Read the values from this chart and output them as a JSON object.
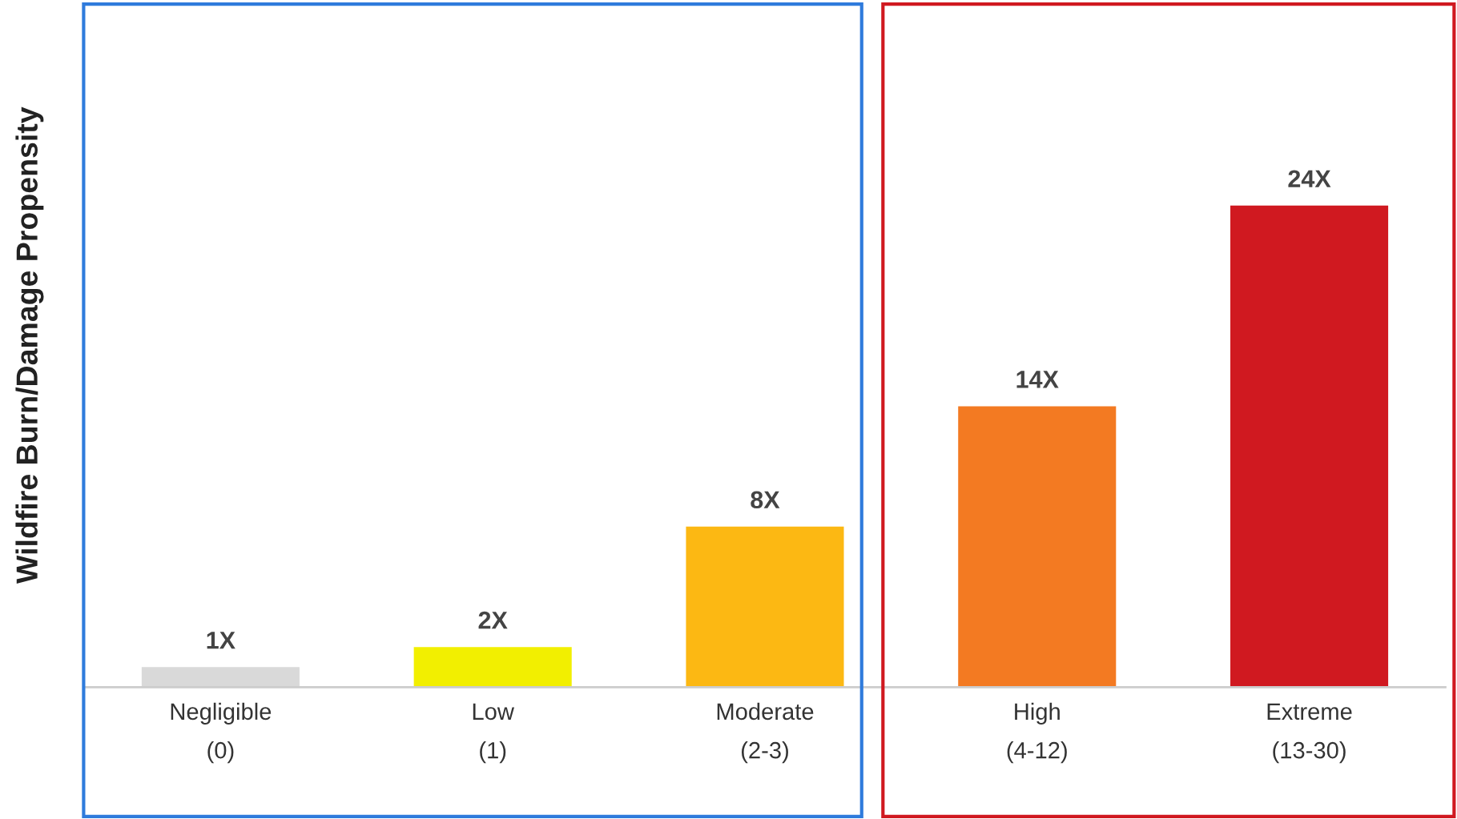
{
  "chart_data": {
    "type": "bar",
    "ylabel": "Wildfire Burn/Damage Propensity",
    "categories": [
      "Negligible\n(0)",
      "Low\n(1)",
      "Moderate\n(2-3)",
      "High\n(4-12)",
      "Extreme\n(13-30)"
    ],
    "values": [
      1,
      2,
      8,
      14,
      24
    ],
    "colors": [
      "#d9d9d9",
      "#f2ef00",
      "#fcb813",
      "#f37a22",
      "#d01920"
    ],
    "value_labels": [
      "1X",
      "2X",
      "8X",
      "14X",
      "24X"
    ],
    "tick_labels": "x"
  }
}
